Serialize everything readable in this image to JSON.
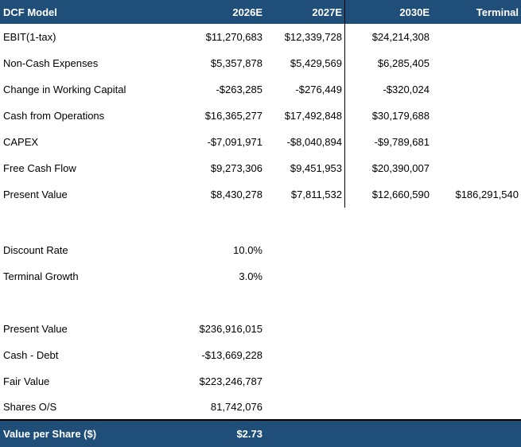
{
  "colors": {
    "header_bg": "#1F4E79",
    "header_text": "#FFFFFF",
    "body_text": "#000000",
    "divider": "#000000"
  },
  "table": {
    "title": "DCF Model",
    "columns": [
      "2026E",
      "2027E",
      "2030E",
      "Terminal"
    ],
    "cashflow_rows": [
      {
        "label": "EBIT(1-tax)",
        "c1": "$11,270,683",
        "c2": "$12,339,728",
        "c3": "$24,214,308",
        "c4": ""
      },
      {
        "label": "Non-Cash Expenses",
        "c1": "$5,357,878",
        "c2": "$5,429,569",
        "c3": "$6,285,405",
        "c4": ""
      },
      {
        "label": "Change in Working Capital",
        "c1": "-$263,285",
        "c2": "-$276,449",
        "c3": "-$320,024",
        "c4": ""
      },
      {
        "label": "Cash from Operations",
        "c1": "$16,365,277",
        "c2": "$17,492,848",
        "c3": "$30,179,688",
        "c4": ""
      },
      {
        "label": "CAPEX",
        "c1": "-$7,091,971",
        "c2": "-$8,040,894",
        "c3": "-$9,789,681",
        "c4": ""
      },
      {
        "label": "Free Cash Flow",
        "c1": "$9,273,306",
        "c2": "$9,451,953",
        "c3": "$20,390,007",
        "c4": ""
      },
      {
        "label": "Present Value",
        "c1": "$8,430,278",
        "c2": "$7,811,532",
        "c3": "$12,660,590",
        "c4": "$186,291,540"
      }
    ],
    "assumption_rows": [
      {
        "label": "Discount Rate",
        "value": "10.0%"
      },
      {
        "label": "Terminal Growth",
        "value": "3.0%"
      }
    ],
    "valuation_rows": [
      {
        "label": "Present Value",
        "value": "$236,916,015"
      },
      {
        "label": "Cash - Debt",
        "value": "-$13,669,228"
      },
      {
        "label": "Fair Value",
        "value": "$223,246,787"
      },
      {
        "label": "Shares O/S",
        "value": "81,742,076"
      }
    ],
    "footer": {
      "label": "Value per Share ($)",
      "value": "$2.73"
    }
  }
}
